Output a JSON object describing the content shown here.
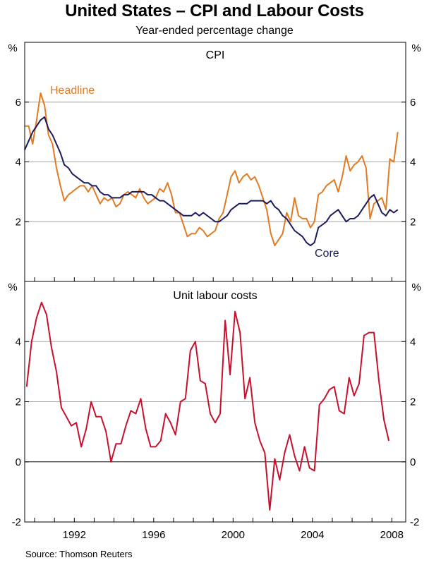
{
  "title": "United States – CPI and Labour Costs",
  "subtitle": "Year-ended percentage change",
  "source": "Source: Thomson Reuters",
  "colors": {
    "headline": "#e07b24",
    "core": "#1b1b5e",
    "ulc": "#c8102e",
    "grid": "#a6a6a6",
    "frame": "#000000"
  },
  "chart_data": [
    {
      "type": "line",
      "title": "CPI",
      "unit_label": "%",
      "ylim": [
        0,
        8
      ],
      "yticks": [
        2,
        4,
        6
      ],
      "xlim": [
        1989.5,
        2008.7
      ],
      "xticks": [
        1992,
        1996,
        2000,
        2004,
        2008
      ],
      "series": [
        {
          "name": "Headline",
          "color": "#e07b24",
          "x": [
            1989.5,
            1989.7,
            1989.9,
            1990.1,
            1990.3,
            1990.5,
            1990.7,
            1990.9,
            1991.1,
            1991.3,
            1991.5,
            1991.7,
            1991.9,
            1992.1,
            1992.3,
            1992.5,
            1992.7,
            1992.9,
            1993.1,
            1993.3,
            1993.5,
            1993.7,
            1993.9,
            1994.1,
            1994.3,
            1994.5,
            1994.7,
            1994.9,
            1995.1,
            1995.3,
            1995.5,
            1995.7,
            1995.9,
            1996.1,
            1996.3,
            1996.5,
            1996.7,
            1996.9,
            1997.1,
            1997.3,
            1997.5,
            1997.7,
            1997.9,
            1998.1,
            1998.3,
            1998.5,
            1998.7,
            1998.9,
            1999.1,
            1999.3,
            1999.5,
            1999.7,
            1999.9,
            2000.1,
            2000.3,
            2000.5,
            2000.7,
            2000.9,
            2001.1,
            2001.3,
            2001.5,
            2001.7,
            2001.9,
            2002.1,
            2002.3,
            2002.5,
            2002.7,
            2002.9,
            2003.1,
            2003.3,
            2003.5,
            2003.7,
            2003.9,
            2004.1,
            2004.3,
            2004.5,
            2004.7,
            2004.9,
            2005.1,
            2005.3,
            2005.5,
            2005.7,
            2005.9,
            2006.1,
            2006.3,
            2006.5,
            2006.7,
            2006.9,
            2007.1,
            2007.3,
            2007.5,
            2007.7,
            2007.9,
            2008.1,
            2008.3
          ],
          "values": [
            5.2,
            5.2,
            4.6,
            5.4,
            6.3,
            5.9,
            4.9,
            4.6,
            3.8,
            3.2,
            2.7,
            2.9,
            3.0,
            3.1,
            3.2,
            3.2,
            3.0,
            3.2,
            2.9,
            2.6,
            2.8,
            2.7,
            2.8,
            2.5,
            2.6,
            2.9,
            3.0,
            2.9,
            2.8,
            3.1,
            2.8,
            2.6,
            2.7,
            2.8,
            3.1,
            3.0,
            3.3,
            2.9,
            2.3,
            2.3,
            1.9,
            1.5,
            1.6,
            1.6,
            1.8,
            1.7,
            1.5,
            1.6,
            1.7,
            2.1,
            2.3,
            2.9,
            3.5,
            3.7,
            3.3,
            3.5,
            3.6,
            3.4,
            3.5,
            3.2,
            2.8,
            2.4,
            1.6,
            1.2,
            1.4,
            1.6,
            2.3,
            2.0,
            2.8,
            2.2,
            2.1,
            2.1,
            1.8,
            2.0,
            2.9,
            3.0,
            3.2,
            3.3,
            3.4,
            3.0,
            3.5,
            4.2,
            3.7,
            3.9,
            4.0,
            4.2,
            3.8,
            2.1,
            2.6,
            2.7,
            2.8,
            2.4,
            4.1,
            4.0,
            5.0
          ]
        },
        {
          "name": "Core",
          "color": "#1b1b5e",
          "x": [
            1989.5,
            1989.7,
            1989.9,
            1990.1,
            1990.3,
            1990.5,
            1990.7,
            1990.9,
            1991.1,
            1991.3,
            1991.5,
            1991.7,
            1991.9,
            1992.1,
            1992.3,
            1992.5,
            1992.7,
            1992.9,
            1993.1,
            1993.3,
            1993.5,
            1993.7,
            1993.9,
            1994.1,
            1994.3,
            1994.5,
            1994.7,
            1994.9,
            1995.1,
            1995.3,
            1995.5,
            1995.7,
            1995.9,
            1996.1,
            1996.3,
            1996.5,
            1996.7,
            1996.9,
            1997.1,
            1997.3,
            1997.5,
            1997.7,
            1997.9,
            1998.1,
            1998.3,
            1998.5,
            1998.7,
            1998.9,
            1999.1,
            1999.3,
            1999.5,
            1999.7,
            1999.9,
            2000.1,
            2000.3,
            2000.5,
            2000.7,
            2000.9,
            2001.1,
            2001.3,
            2001.5,
            2001.7,
            2001.9,
            2002.1,
            2002.3,
            2002.5,
            2002.7,
            2002.9,
            2003.1,
            2003.3,
            2003.5,
            2003.7,
            2003.9,
            2004.1,
            2004.3,
            2004.5,
            2004.7,
            2004.9,
            2005.1,
            2005.3,
            2005.5,
            2005.7,
            2005.9,
            2006.1,
            2006.3,
            2006.5,
            2006.7,
            2006.9,
            2007.1,
            2007.3,
            2007.5,
            2007.7,
            2007.9,
            2008.1,
            2008.3
          ],
          "values": [
            4.4,
            4.7,
            5.0,
            5.2,
            5.4,
            5.5,
            5.1,
            4.9,
            4.6,
            4.3,
            3.9,
            3.8,
            3.6,
            3.5,
            3.4,
            3.3,
            3.3,
            3.2,
            3.2,
            3.0,
            2.9,
            2.9,
            2.8,
            2.8,
            2.8,
            2.9,
            2.9,
            3.0,
            3.0,
            3.0,
            3.0,
            2.9,
            2.9,
            2.8,
            2.7,
            2.7,
            2.6,
            2.5,
            2.4,
            2.3,
            2.2,
            2.2,
            2.2,
            2.3,
            2.2,
            2.3,
            2.2,
            2.1,
            2.0,
            2.0,
            2.1,
            2.2,
            2.4,
            2.5,
            2.6,
            2.6,
            2.6,
            2.7,
            2.7,
            2.7,
            2.7,
            2.6,
            2.7,
            2.5,
            2.4,
            2.2,
            2.1,
            1.9,
            1.7,
            1.6,
            1.5,
            1.3,
            1.2,
            1.3,
            1.8,
            1.9,
            2.0,
            2.2,
            2.3,
            2.4,
            2.2,
            2.0,
            2.1,
            2.1,
            2.2,
            2.4,
            2.6,
            2.8,
            2.9,
            2.6,
            2.3,
            2.2,
            2.4,
            2.3,
            2.4
          ]
        }
      ]
    },
    {
      "type": "line",
      "title": "Unit labour costs",
      "unit_label": "%",
      "ylim": [
        -2,
        6
      ],
      "yticks": [
        -2,
        0,
        2,
        4
      ],
      "xlim": [
        1989.5,
        2008.7
      ],
      "xticks": [
        1992,
        1996,
        2000,
        2004,
        2008
      ],
      "series": [
        {
          "name": "Unit labour costs",
          "color": "#c8102e",
          "x": [
            1989.6,
            1989.85,
            1990.1,
            1990.35,
            1990.6,
            1990.85,
            1991.1,
            1991.35,
            1991.6,
            1991.85,
            1992.1,
            1992.35,
            1992.6,
            1992.85,
            1993.1,
            1993.35,
            1993.6,
            1993.85,
            1994.1,
            1994.35,
            1994.6,
            1994.85,
            1995.1,
            1995.35,
            1995.6,
            1995.85,
            1996.1,
            1996.35,
            1996.6,
            1996.85,
            1997.1,
            1997.35,
            1997.6,
            1997.85,
            1998.1,
            1998.35,
            1998.6,
            1998.85,
            1999.1,
            1999.35,
            1999.6,
            1999.85,
            2000.1,
            2000.35,
            2000.6,
            2000.85,
            2001.1,
            2001.35,
            2001.6,
            2001.85,
            2002.1,
            2002.35,
            2002.6,
            2002.85,
            2003.1,
            2003.35,
            2003.6,
            2003.85,
            2004.1,
            2004.35,
            2004.6,
            2004.85,
            2005.1,
            2005.35,
            2005.6,
            2005.85,
            2006.1,
            2006.35,
            2006.6,
            2006.85,
            2007.1,
            2007.35,
            2007.6,
            2007.85
          ],
          "values": [
            2.5,
            4.0,
            4.8,
            5.3,
            4.9,
            3.8,
            3.0,
            1.8,
            1.5,
            1.2,
            1.3,
            0.5,
            1.1,
            2.0,
            1.5,
            1.5,
            1.0,
            0.0,
            0.6,
            0.6,
            1.2,
            1.7,
            1.6,
            2.1,
            1.1,
            0.5,
            0.5,
            0.7,
            1.6,
            1.3,
            0.9,
            2.0,
            2.1,
            3.7,
            4.0,
            2.7,
            2.6,
            1.6,
            1.3,
            1.6,
            4.7,
            2.9,
            5.0,
            4.3,
            2.1,
            2.8,
            1.3,
            0.7,
            0.3,
            -1.6,
            0.1,
            -0.6,
            0.3,
            0.9,
            0.2,
            -0.3,
            0.5,
            -0.2,
            -0.3,
            1.9,
            2.1,
            2.4,
            2.5,
            1.7,
            1.6,
            2.8,
            2.2,
            2.6,
            4.2,
            4.3,
            4.3,
            2.7,
            1.4,
            0.7
          ]
        }
      ]
    }
  ]
}
